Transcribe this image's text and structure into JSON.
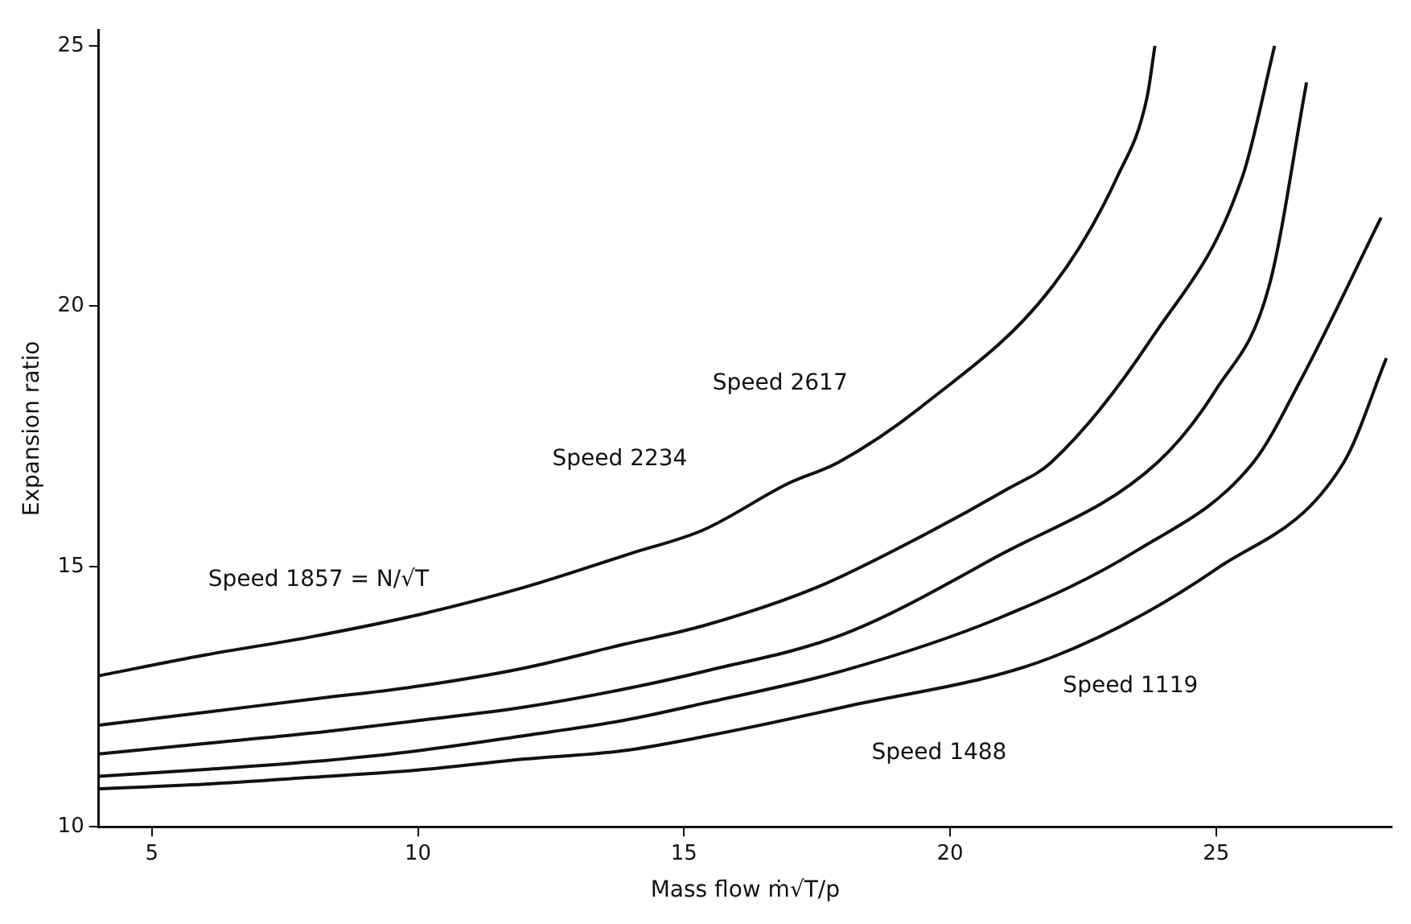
{
  "chart_data": {
    "type": "line",
    "xlabel": "Mass flow ṁ√T/p",
    "ylabel": "Expansion ratio",
    "xlim": [
      4,
      28.3
    ],
    "ylim": [
      10,
      25.3
    ],
    "xticks": [
      5,
      10,
      15,
      20,
      25
    ],
    "yticks": [
      10,
      15,
      20,
      25
    ],
    "grid": false,
    "legend": false,
    "marker": "none",
    "line_style": "solid",
    "series": [
      {
        "color": "#111111",
        "x": [
          4,
          6,
          8,
          10,
          12,
          14,
          15.36,
          16.97,
          17.9,
          19.5,
          21.94,
          23.15,
          23.7,
          23.85
        ],
        "values": [
          12.9,
          13.3,
          13.65,
          14.07,
          14.6,
          15.25,
          15.7,
          16.6,
          17.0,
          18.1,
          20.4,
          22.5,
          24.0,
          25.0
        ]
      },
      {
        "color": "#111111",
        "x": [
          4,
          6,
          8,
          10,
          12,
          13.85,
          15.36,
          17.5,
          19.5,
          21.1,
          21.9,
          23.8,
          25.5,
          26.1
        ],
        "values": [
          11.95,
          12.2,
          12.45,
          12.7,
          13.05,
          13.5,
          13.86,
          14.6,
          15.6,
          16.5,
          17.0,
          19.4,
          22.5,
          25.0
        ]
      },
      {
        "color": "#111111",
        "x": [
          4,
          6,
          8,
          10,
          12,
          13.85,
          15.36,
          18,
          20.9,
          23.9,
          25,
          26.0,
          26.7
        ],
        "values": [
          11.4,
          11.6,
          11.8,
          12.04,
          12.3,
          12.64,
          12.98,
          13.7,
          15.2,
          17.0,
          18.4,
          20.4,
          24.3
        ]
      },
      {
        "color": "#111111",
        "x": [
          4,
          6,
          8,
          10,
          12,
          13.85,
          15.36,
          18,
          20.9,
          23.5,
          25.7,
          26.6,
          28.1
        ],
        "values": [
          10.97,
          11.1,
          11.25,
          11.46,
          11.75,
          12.04,
          12.37,
          13.0,
          14.0,
          15.3,
          17.0,
          18.6,
          21.7
        ]
      },
      {
        "color": "#111111",
        "x": [
          4,
          6,
          8,
          10,
          12,
          13.85,
          15.36,
          18,
          21.9,
          25,
          27.4,
          28.2
        ],
        "values": [
          10.73,
          10.82,
          10.95,
          11.09,
          11.3,
          11.46,
          11.73,
          12.3,
          13.25,
          14.95,
          17.0,
          19.0
        ]
      }
    ],
    "annotations": [
      "Speed 2617",
      "Speed 2234",
      "Speed 1857 = N/√T",
      "Speed 1488",
      "Speed 1119"
    ]
  }
}
